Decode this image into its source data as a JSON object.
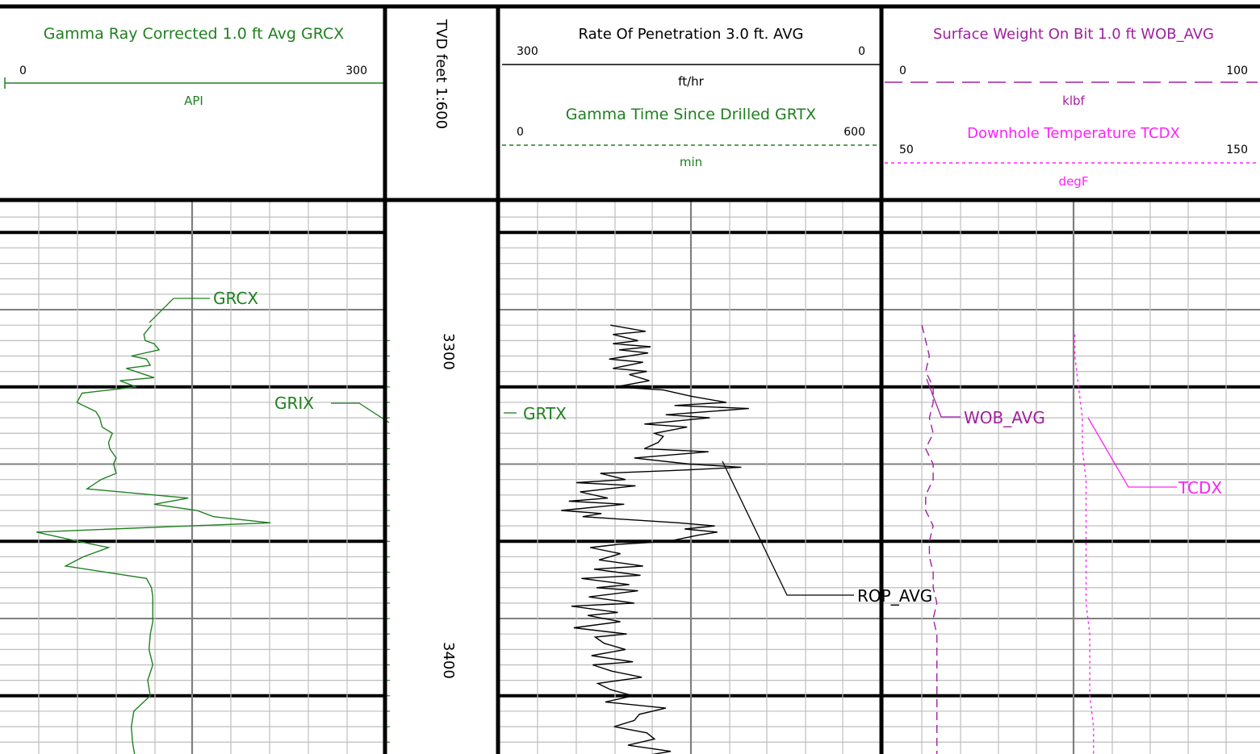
{
  "colors": {
    "green": "#208020",
    "magenta": "#a020a0",
    "pink": "#ff20ff",
    "black": "#000000",
    "grid_minor": "#bdbdbd",
    "grid_major": "#7f7f7f"
  },
  "track1": {
    "title": "Gamma Ray Corrected 1.0 ft Avg GRCX",
    "min": "0",
    "max": "300",
    "unit": "API"
  },
  "depth_track": {
    "title": "TVD feet 1:600",
    "labels": [
      "3300",
      "3400"
    ]
  },
  "track3": {
    "curve1": {
      "title": "Rate Of Penetration 3.0 ft. AVG",
      "min": "300",
      "max": "0",
      "unit": "ft/hr"
    },
    "curve2": {
      "title": "Gamma Time Since Drilled GRTX",
      "min": "0",
      "max": "600",
      "unit": "min"
    }
  },
  "track4": {
    "curve1": {
      "title": "Surface Weight On Bit 1.0 ft WOB_AVG",
      "min": "0",
      "max": "100",
      "unit": "klbf"
    },
    "curve2": {
      "title": "Downhole Temperature TCDX",
      "min": "50",
      "max": "150",
      "unit": "degF"
    }
  },
  "curve_labels": {
    "grcx": "GRCX",
    "grix": "GRIX",
    "grtx": "GRTX",
    "rop": "ROP_AVG",
    "wob": "WOB_AVG",
    "tcdx": "TCDX"
  },
  "chart_data": {
    "type": "line",
    "depth_range": [
      3240,
      3456
    ],
    "depth_unit": "feet",
    "series": [
      {
        "name": "GRCX",
        "unit": "API",
        "range": [
          0,
          300
        ],
        "points": [
          [
            3280,
            116
          ],
          [
            3283,
            110
          ],
          [
            3285,
            111
          ],
          [
            3286,
            118
          ],
          [
            3288,
            122
          ],
          [
            3290,
            100
          ],
          [
            3291,
            112
          ],
          [
            3293,
            115
          ],
          [
            3294,
            96
          ],
          [
            3297,
            118
          ],
          [
            3298,
            91
          ],
          [
            3300,
            104
          ],
          [
            3302,
            61
          ],
          [
            3305,
            57
          ],
          [
            3308,
            72
          ],
          [
            3310,
            75
          ],
          [
            3313,
            77
          ],
          [
            3315,
            85
          ],
          [
            3318,
            82
          ],
          [
            3320,
            83
          ],
          [
            3323,
            88
          ],
          [
            3325,
            86
          ],
          [
            3328,
            88
          ],
          [
            3330,
            76
          ],
          [
            3333,
            65
          ],
          [
            3336,
            145
          ],
          [
            3338,
            118
          ],
          [
            3340,
            152
          ],
          [
            3342,
            165
          ],
          [
            3344,
            210
          ],
          [
            3345,
            145
          ],
          [
            3347,
            25
          ],
          [
            3350,
            58
          ],
          [
            3352,
            82
          ],
          [
            3355,
            62
          ],
          [
            3358,
            48
          ],
          [
            3362,
            112
          ],
          [
            3365,
            116
          ],
          [
            3368,
            117
          ],
          [
            3372,
            117
          ],
          [
            3376,
            117
          ],
          [
            3380,
            115
          ],
          [
            3385,
            114
          ],
          [
            3390,
            117
          ],
          [
            3395,
            113
          ],
          [
            3400,
            115
          ],
          [
            3405,
            102
          ],
          [
            3410,
            100
          ],
          [
            3415,
            101
          ],
          [
            3420,
            103
          ],
          [
            3425,
            104
          ]
        ]
      },
      {
        "name": "ROP_AVG",
        "unit": "ft/hr",
        "range": [
          300,
          0
        ],
        "points": [
          [
            3280,
            214
          ],
          [
            3282,
            186
          ],
          [
            3283,
            212
          ],
          [
            3285,
            192
          ],
          [
            3286,
            212
          ],
          [
            3287,
            182
          ],
          [
            3288,
            207
          ],
          [
            3289,
            184
          ],
          [
            3291,
            215
          ],
          [
            3292,
            188
          ],
          [
            3294,
            212
          ],
          [
            3295,
            185
          ],
          [
            3296,
            199
          ],
          [
            3298,
            183
          ],
          [
            3300,
            210
          ],
          [
            3301,
            172
          ],
          [
            3303,
            150
          ],
          [
            3305,
            122
          ],
          [
            3306,
            163
          ],
          [
            3307,
            104
          ],
          [
            3309,
            170
          ],
          [
            3310,
            135
          ],
          [
            3312,
            187
          ],
          [
            3313,
            153
          ],
          [
            3315,
            179
          ],
          [
            3316,
            172
          ],
          [
            3318,
            176
          ],
          [
            3320,
            187
          ],
          [
            3321,
            136
          ],
          [
            3323,
            195
          ],
          [
            3325,
            151
          ],
          [
            3326,
            110
          ],
          [
            3327,
            160
          ],
          [
            3328,
            222
          ],
          [
            3330,
            202
          ],
          [
            3331,
            241
          ],
          [
            3332,
            194
          ],
          [
            3334,
            238
          ],
          [
            3336,
            216
          ],
          [
            3337,
            247
          ],
          [
            3338,
            203
          ],
          [
            3340,
            253
          ],
          [
            3341,
            221
          ],
          [
            3342,
            236
          ],
          [
            3344,
            160
          ],
          [
            3345,
            131
          ],
          [
            3346,
            155
          ],
          [
            3347,
            129
          ],
          [
            3348,
            144
          ],
          [
            3350,
            168
          ],
          [
            3351,
            208
          ],
          [
            3352,
            230
          ],
          [
            3354,
            206
          ],
          [
            3356,
            223
          ],
          [
            3358,
            188
          ],
          [
            3359,
            227
          ],
          [
            3361,
            190
          ],
          [
            3362,
            237
          ],
          [
            3364,
            199
          ],
          [
            3365,
            225
          ],
          [
            3366,
            192
          ],
          [
            3368,
            231
          ],
          [
            3370,
            195
          ],
          [
            3371,
            245
          ],
          [
            3373,
            208
          ],
          [
            3374,
            232
          ],
          [
            3376,
            206
          ],
          [
            3378,
            243
          ],
          [
            3380,
            201
          ],
          [
            3381,
            226
          ],
          [
            3383,
            219
          ],
          [
            3385,
            202
          ],
          [
            3387,
            229
          ],
          [
            3389,
            196
          ],
          [
            3390,
            228
          ],
          [
            3392,
            213
          ],
          [
            3394,
            189
          ],
          [
            3396,
            224
          ],
          [
            3398,
            214
          ],
          [
            3400,
            196
          ],
          [
            3402,
            218
          ],
          [
            3404,
            170
          ],
          [
            3406,
            191
          ],
          [
            3408,
            195
          ],
          [
            3410,
            211
          ],
          [
            3412,
            185
          ],
          [
            3414,
            179
          ],
          [
            3416,
            200
          ],
          [
            3418,
            166
          ],
          [
            3420,
            195
          ],
          [
            3422,
            164
          ],
          [
            3424,
            191
          ],
          [
            3426,
            180
          ],
          [
            3427,
            172
          ],
          [
            3428,
            202
          ]
        ]
      },
      {
        "name": "WOB_AVG",
        "unit": "klbf",
        "range": [
          0,
          100
        ],
        "points": [
          [
            3280,
            10
          ],
          [
            3285,
            11
          ],
          [
            3290,
            12
          ],
          [
            3295,
            11
          ],
          [
            3300,
            13
          ],
          [
            3305,
            13
          ],
          [
            3310,
            12
          ],
          [
            3315,
            13
          ],
          [
            3320,
            11
          ],
          [
            3325,
            13
          ],
          [
            3330,
            13
          ],
          [
            3335,
            11
          ],
          [
            3340,
            11
          ],
          [
            3345,
            13
          ],
          [
            3350,
            12
          ],
          [
            3355,
            12
          ],
          [
            3360,
            13
          ],
          [
            3365,
            13
          ],
          [
            3370,
            14
          ],
          [
            3375,
            13
          ],
          [
            3380,
            14
          ],
          [
            3385,
            14
          ],
          [
            3390,
            14
          ],
          [
            3395,
            14
          ],
          [
            3400,
            14
          ],
          [
            3405,
            14
          ],
          [
            3410,
            14
          ],
          [
            3415,
            14
          ],
          [
            3420,
            14
          ],
          [
            3425,
            14
          ],
          [
            3428,
            14
          ]
        ]
      },
      {
        "name": "TCDX",
        "unit": "degF",
        "range": [
          50,
          150
        ],
        "points": [
          [
            3283,
            101
          ],
          [
            3290,
            101
          ],
          [
            3300,
            102
          ],
          [
            3310,
            103
          ],
          [
            3320,
            103
          ],
          [
            3330,
            104
          ],
          [
            3340,
            104
          ],
          [
            3350,
            104
          ],
          [
            3360,
            104
          ],
          [
            3370,
            104
          ],
          [
            3380,
            105
          ],
          [
            3390,
            105
          ],
          [
            3400,
            105
          ],
          [
            3410,
            106
          ],
          [
            3420,
            106
          ],
          [
            3428,
            106
          ]
        ]
      }
    ]
  }
}
